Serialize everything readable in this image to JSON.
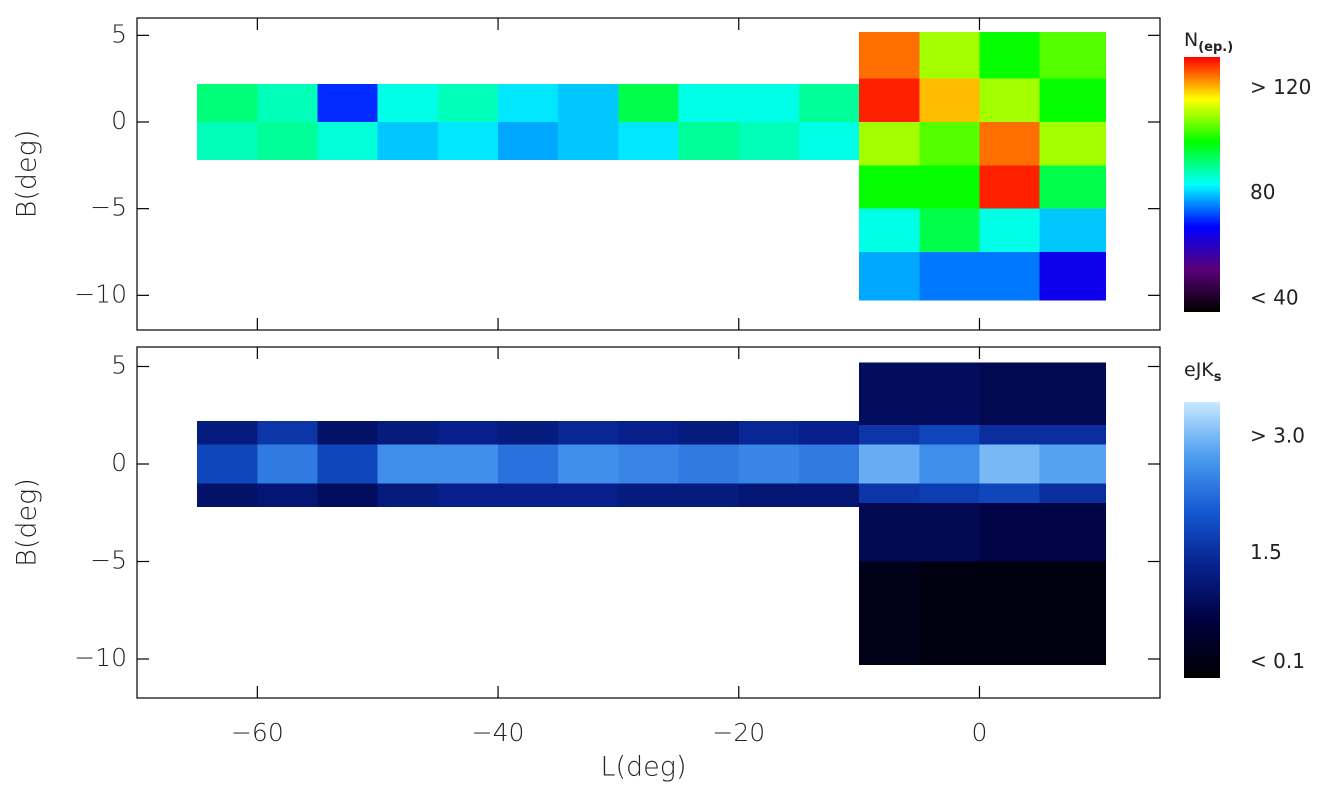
{
  "chart_data": [
    {
      "type": "heatmap",
      "ylabel": "B(deg)",
      "xlim": [
        -70,
        15
      ],
      "ylim": [
        -12,
        6
      ],
      "xticks": [
        {
          "value": -60,
          "label": "−60"
        },
        {
          "value": -40,
          "label": "−40"
        },
        {
          "value": -20,
          "label": "−20"
        },
        0
      ],
      "yticks": [
        {
          "value": -10,
          "label": "−10"
        },
        {
          "value": -5,
          "label": "−5"
        },
        0,
        5
      ],
      "colorbar": {
        "title": "N",
        "title_sub": "(ep.)",
        "clim": [
          35,
          132
        ],
        "ticks": [
          {
            "value": 120,
            "label": "> 120"
          },
          80,
          {
            "value": 40,
            "label": "< 40"
          }
        ],
        "colormap": [
          "#000000",
          "#5a0078",
          "#0000ff",
          "#00ffff",
          "#00ff00",
          "#ffff00",
          "#ff0000"
        ]
      },
      "tiles": [
        [
          -65,
          -60,
          0,
          2.2,
          92
        ],
        [
          -60,
          -55,
          0,
          2.2,
          88
        ],
        [
          -55,
          -50,
          0,
          2.2,
          70
        ],
        [
          -50,
          -45,
          0,
          2.2,
          85
        ],
        [
          -45,
          -40,
          0,
          2.2,
          88
        ],
        [
          -40,
          -35,
          0,
          2.2,
          82
        ],
        [
          -35,
          -30,
          0,
          2.2,
          80
        ],
        [
          -30,
          -25,
          0,
          2.2,
          95
        ],
        [
          -25,
          -20,
          0,
          2.2,
          85
        ],
        [
          -20,
          -15,
          0,
          2.2,
          85
        ],
        [
          -15,
          -10,
          0,
          2.2,
          90
        ],
        [
          -65,
          -60,
          -2.2,
          0,
          88
        ],
        [
          -60,
          -55,
          -2.2,
          0,
          90
        ],
        [
          -55,
          -50,
          -2.2,
          0,
          86
        ],
        [
          -50,
          -45,
          -2.2,
          0,
          80
        ],
        [
          -45,
          -40,
          -2.2,
          0,
          82
        ],
        [
          -40,
          -35,
          -2.2,
          0,
          78
        ],
        [
          -35,
          -30,
          -2.2,
          0,
          80
        ],
        [
          -30,
          -25,
          -2.2,
          0,
          82
        ],
        [
          -25,
          -20,
          -2.2,
          0,
          90
        ],
        [
          -20,
          -15,
          -2.2,
          0,
          88
        ],
        [
          -15,
          -10,
          -2.2,
          0,
          85
        ],
        [
          -10,
          -5,
          2.5,
          5.2,
          125
        ],
        [
          -5,
          0,
          2.5,
          5.2,
          110
        ],
        [
          0,
          5,
          2.5,
          5.2,
          100
        ],
        [
          5,
          10.5,
          2.5,
          5.2,
          105
        ],
        [
          -10,
          -5,
          0,
          2.5,
          130
        ],
        [
          -5,
          0,
          0,
          2.5,
          120
        ],
        [
          0,
          5,
          0,
          2.5,
          110
        ],
        [
          5,
          10.5,
          0,
          2.5,
          100
        ],
        [
          -10,
          -5,
          -2.5,
          0,
          110
        ],
        [
          -5,
          0,
          -2.5,
          0,
          105
        ],
        [
          0,
          5,
          -2.5,
          0,
          125
        ],
        [
          5,
          10.5,
          -2.5,
          0,
          110
        ],
        [
          -10,
          -5,
          -5,
          -2.5,
          100
        ],
        [
          -5,
          0,
          -5,
          -2.5,
          100
        ],
        [
          0,
          5,
          -5,
          -2.5,
          130
        ],
        [
          5,
          10.5,
          -5,
          -2.5,
          95
        ],
        [
          -10,
          -5,
          -7.5,
          -5,
          85
        ],
        [
          -5,
          0,
          -7.5,
          -5,
          95
        ],
        [
          0,
          5,
          -7.5,
          -5,
          85
        ],
        [
          5,
          10.5,
          -7.5,
          -5,
          80
        ],
        [
          -10,
          -5,
          -10.3,
          -7.5,
          78
        ],
        [
          -5,
          0,
          -10.3,
          -7.5,
          75
        ],
        [
          0,
          5,
          -10.3,
          -7.5,
          75
        ],
        [
          5,
          10.5,
          -10.3,
          -7.5,
          65
        ]
      ]
    },
    {
      "type": "heatmap",
      "ylabel": "B(deg)",
      "xlabel": "L(deg)",
      "xlim": [
        -70,
        15
      ],
      "ylim": [
        -12,
        6
      ],
      "xticks": [
        {
          "value": -60,
          "label": "−60"
        },
        {
          "value": -40,
          "label": "−40"
        },
        {
          "value": -20,
          "label": "−20"
        },
        0
      ],
      "yticks": [
        {
          "value": -10,
          "label": "−10"
        },
        {
          "value": -5,
          "label": "−5"
        },
        0,
        5
      ],
      "colorbar": {
        "title": "eJK",
        "title_sub": "s",
        "clim": [
          -0.1,
          3.45
        ],
        "ticks": [
          {
            "value": 3.0,
            "label": "> 3.0"
          },
          1.5,
          {
            "value": 0.1,
            "label": "< 0.1"
          }
        ],
        "colormap": [
          "#000000",
          "#00003c",
          "#06208c",
          "#1458d2",
          "#4a9cf0",
          "#c8e8ff"
        ]
      },
      "tiles": [
        [
          -65,
          -60,
          1,
          2.2,
          1.2
        ],
        [
          -60,
          -55,
          1,
          2.2,
          1.6
        ],
        [
          -55,
          -50,
          1,
          2.2,
          1.0
        ],
        [
          -50,
          -45,
          1,
          2.2,
          1.2
        ],
        [
          -45,
          -40,
          1,
          2.2,
          1.3
        ],
        [
          -40,
          -35,
          1,
          2.2,
          1.2
        ],
        [
          -35,
          -30,
          1,
          2.2,
          1.4
        ],
        [
          -30,
          -25,
          1,
          2.2,
          1.3
        ],
        [
          -25,
          -20,
          1,
          2.2,
          1.2
        ],
        [
          -20,
          -15,
          1,
          2.2,
          1.4
        ],
        [
          -15,
          -10,
          1,
          2.2,
          1.3
        ],
        [
          -65,
          -60,
          -1,
          1,
          1.8
        ],
        [
          -60,
          -55,
          -1,
          1,
          2.4
        ],
        [
          -55,
          -50,
          -1,
          1,
          1.8
        ],
        [
          -50,
          -45,
          -1,
          1,
          2.6
        ],
        [
          -45,
          -40,
          -1,
          1,
          2.6
        ],
        [
          -40,
          -35,
          -1,
          1,
          2.3
        ],
        [
          -35,
          -30,
          -1,
          1,
          2.6
        ],
        [
          -30,
          -25,
          -1,
          1,
          2.5
        ],
        [
          -25,
          -20,
          -1,
          1,
          2.4
        ],
        [
          -20,
          -15,
          -1,
          1,
          2.5
        ],
        [
          -15,
          -10,
          -1,
          1,
          2.4
        ],
        [
          -65,
          -60,
          -2.2,
          -1,
          1.0
        ],
        [
          -60,
          -55,
          -2.2,
          -1,
          1.1
        ],
        [
          -55,
          -50,
          -2.2,
          -1,
          0.9
        ],
        [
          -50,
          -45,
          -2.2,
          -1,
          1.2
        ],
        [
          -45,
          -40,
          -2.2,
          -1,
          1.3
        ],
        [
          -40,
          -35,
          -2.2,
          -1,
          1.3
        ],
        [
          -35,
          -30,
          -2.2,
          -1,
          1.3
        ],
        [
          -30,
          -25,
          -2.2,
          -1,
          1.2
        ],
        [
          -25,
          -20,
          -2.2,
          -1,
          1.2
        ],
        [
          -20,
          -15,
          -2.2,
          -1,
          1.1
        ],
        [
          -15,
          -10,
          -2.2,
          -1,
          1.1
        ],
        [
          -10,
          -5,
          2,
          5.2,
          0.9
        ],
        [
          -5,
          0,
          2,
          5.2,
          0.9
        ],
        [
          0,
          5,
          2,
          5.2,
          0.8
        ],
        [
          5,
          10.5,
          2,
          5.2,
          0.8
        ],
        [
          -10,
          -5,
          1,
          2,
          1.6
        ],
        [
          -5,
          0,
          1,
          2,
          1.8
        ],
        [
          0,
          5,
          1,
          2,
          1.5
        ],
        [
          5,
          10.5,
          1,
          2,
          1.5
        ],
        [
          -10,
          -5,
          -1,
          1,
          2.9
        ],
        [
          -5,
          0,
          -1,
          1,
          2.6
        ],
        [
          0,
          5,
          -1,
          1,
          3.0
        ],
        [
          5,
          10.5,
          -1,
          1,
          2.8
        ],
        [
          -10,
          -5,
          -2,
          -1,
          1.6
        ],
        [
          -5,
          0,
          -2,
          -1,
          1.7
        ],
        [
          0,
          5,
          -2,
          -1,
          1.8
        ],
        [
          5,
          10.5,
          -2,
          -1,
          1.5
        ],
        [
          -10,
          -5,
          -5,
          -2,
          0.8
        ],
        [
          -5,
          0,
          -5,
          -2,
          0.8
        ],
        [
          0,
          5,
          -5,
          -2,
          0.7
        ],
        [
          5,
          10.5,
          -5,
          -2,
          0.7
        ],
        [
          -10,
          -5,
          -10.3,
          -5,
          0.2
        ],
        [
          -5,
          0,
          -10.3,
          -5,
          0.1
        ],
        [
          0,
          5,
          -10.3,
          -5,
          0.1
        ],
        [
          5,
          10.5,
          -10.3,
          -5,
          0.1
        ]
      ]
    }
  ]
}
